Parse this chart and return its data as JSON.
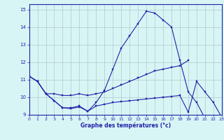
{
  "xlabel": "Graphe des températures (°c)",
  "background_color": "#d8f5f5",
  "grid_color": "#b0c8c8",
  "line_color": "#2222aa",
  "hours": [
    0,
    1,
    2,
    3,
    4,
    5,
    6,
    7,
    8,
    9,
    10,
    11,
    12,
    13,
    14,
    15,
    16,
    17,
    18,
    19,
    20,
    21,
    22,
    23
  ],
  "series1": [
    11.2,
    10.9,
    10.2,
    9.8,
    9.4,
    9.4,
    9.5,
    9.2,
    9.7,
    10.4,
    11.6,
    12.8,
    13.5,
    14.2,
    14.9,
    14.8,
    14.4,
    14.0,
    12.1,
    10.3,
    9.7,
    8.8,
    null,
    null
  ],
  "series2": [
    11.2,
    10.9,
    10.2,
    10.2,
    10.1,
    10.1,
    10.2,
    10.1,
    10.2,
    10.3,
    10.5,
    10.7,
    10.9,
    11.1,
    11.3,
    11.5,
    11.6,
    11.7,
    11.8,
    12.1,
    null,
    null,
    null,
    null
  ],
  "series3": [
    11.2,
    10.9,
    10.2,
    9.8,
    9.4,
    9.35,
    9.45,
    9.2,
    9.5,
    9.6,
    9.7,
    9.75,
    9.8,
    9.85,
    9.9,
    9.95,
    10.0,
    10.05,
    10.1,
    9.15,
    10.9,
    10.3,
    9.7,
    8.85
  ],
  "xlim": [
    0,
    23
  ],
  "ylim": [
    9.0,
    15.3
  ],
  "yticks": [
    9,
    10,
    11,
    12,
    13,
    14,
    15
  ],
  "xticks": [
    0,
    1,
    2,
    3,
    4,
    5,
    6,
    7,
    8,
    9,
    10,
    11,
    12,
    13,
    14,
    15,
    16,
    17,
    18,
    19,
    20,
    21,
    22,
    23
  ]
}
